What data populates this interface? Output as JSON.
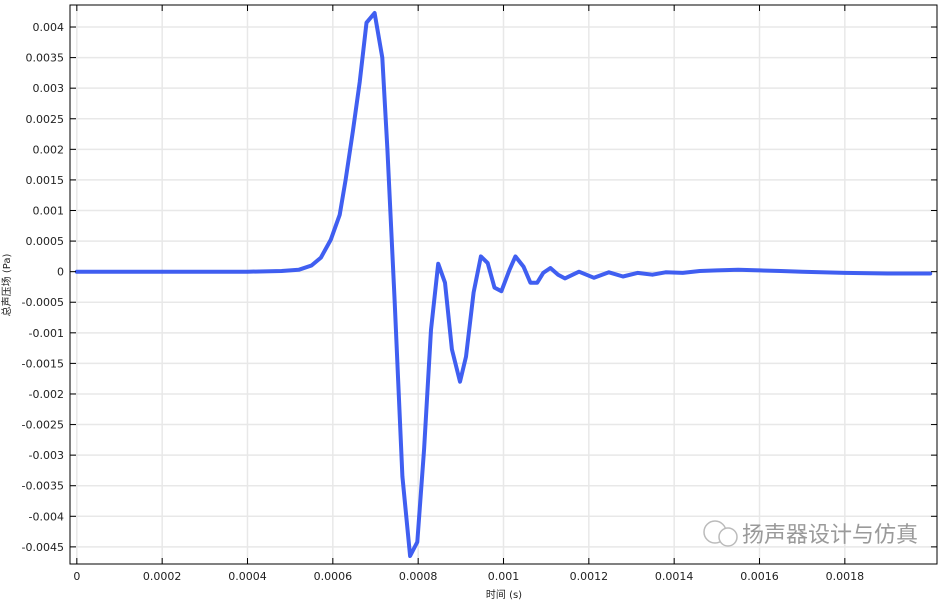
{
  "chart_data": {
    "type": "line",
    "title": "",
    "xlabel": "时间 (s)",
    "ylabel": "总声压场 (Pa)",
    "xlim": [
      -1.6e-05,
      0.002016
    ],
    "ylim": [
      -0.00478,
      0.00436
    ],
    "grid": true,
    "line_color": "#2b4ef0",
    "xticks": [
      0,
      0.0002,
      0.0004,
      0.0006,
      0.0008,
      0.001,
      0.0012,
      0.0014,
      0.0016,
      0.0018
    ],
    "xtick_labels": [
      "0",
      "0.0002",
      "0.0004",
      "0.0006",
      "0.0008",
      "0.001",
      "0.0012",
      "0.0014",
      "0.0016",
      "0.0018"
    ],
    "yticks": [
      0.004,
      0.0035,
      0.003,
      0.0025,
      0.002,
      0.0015,
      0.001,
      0.0005,
      0,
      -0.0005,
      -0.001,
      -0.0015,
      -0.002,
      -0.0025,
      -0.003,
      -0.0035,
      -0.004,
      -0.0045
    ],
    "ytick_labels": [
      "0.004",
      "0.0035",
      "0.003",
      "0.0025",
      "0.002",
      "0.0015",
      "0.001",
      "0.0005",
      "0",
      "-0.0005",
      "-0.001",
      "-0.0015",
      "-0.002",
      "-0.0025",
      "-0.003",
      "-0.0035",
      "-0.004",
      "-0.0045"
    ],
    "series": [
      {
        "x": [
          0,
          0.0001,
          0.0002,
          0.0003,
          0.0004,
          0.00048,
          0.00052,
          0.00055,
          0.000572,
          0.000595,
          0.000616,
          0.00063,
          0.000647,
          0.000663,
          0.000679,
          0.000698,
          0.000716,
          0.000728,
          0.000745,
          0.000763,
          0.000781,
          0.000798,
          0.000814,
          0.00083,
          0.000847,
          0.000863,
          0.000879,
          0.000898,
          0.000912,
          0.00093,
          0.000947,
          0.000963,
          0.000979,
          0.000995,
          0.001014,
          0.001028,
          0.001047,
          0.001063,
          0.001079,
          0.001093,
          0.00111,
          0.001128,
          0.001144,
          0.001177,
          0.001212,
          0.001247,
          0.00128,
          0.001314,
          0.001349,
          0.00138,
          0.00142,
          0.00146,
          0.0015,
          0.00155,
          0.0016,
          0.00165,
          0.0017,
          0.0018,
          0.0019,
          0.002
        ],
        "y": [
          0,
          0,
          0,
          0,
          0,
          1e-05,
          3e-05,
          0.0001,
          0.00023,
          0.00052,
          0.00093,
          0.0015,
          0.0023,
          0.0031,
          0.00407,
          0.00423,
          0.0035,
          0.002,
          -0.0005,
          -0.00335,
          -0.00465,
          -0.00442,
          -0.0029,
          -0.00095,
          0.00013,
          -0.00018,
          -0.00127,
          -0.0018,
          -0.00139,
          -0.00034,
          0.00025,
          0.00014,
          -0.00026,
          -0.00032,
          3e-05,
          0.00025,
          8e-05,
          -0.00018,
          -0.00018,
          -2e-05,
          6e-05,
          -5e-05,
          -0.00011,
          0,
          -0.0001,
          -1e-05,
          -8e-05,
          -2e-05,
          -5e-05,
          -1e-05,
          -2e-05,
          1e-05,
          2e-05,
          3e-05,
          2e-05,
          1e-05,
          0,
          -2e-05,
          -3e-05,
          -3e-05
        ]
      }
    ]
  },
  "watermark": "扬声器设计与仿真"
}
